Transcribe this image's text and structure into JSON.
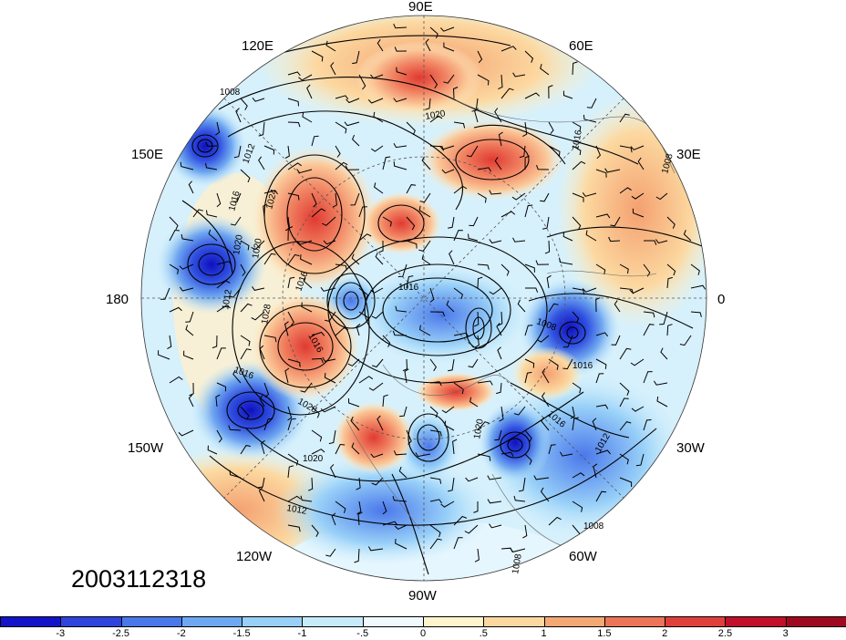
{
  "map": {
    "longitude_labels": [
      {
        "text": "90E",
        "name": "lon-label-90e"
      },
      {
        "text": "120E",
        "name": "lon-label-120e"
      },
      {
        "text": "60E",
        "name": "lon-label-60e"
      },
      {
        "text": "150E",
        "name": "lon-label-150e"
      },
      {
        "text": "30E",
        "name": "lon-label-30e"
      },
      {
        "text": "180",
        "name": "lon-label-180"
      },
      {
        "text": "0",
        "name": "lon-label-0"
      },
      {
        "text": "150W",
        "name": "lon-label-150w"
      },
      {
        "text": "30W",
        "name": "lon-label-30w"
      },
      {
        "text": "120W",
        "name": "lon-label-120w"
      },
      {
        "text": "60W",
        "name": "lon-label-60w"
      },
      {
        "text": "90W",
        "name": "lon-label-90w"
      }
    ],
    "contour_labels": [
      "1008",
      "1012",
      "1016",
      "1020",
      "1024",
      "1028",
      "1016",
      "1016",
      "1008",
      "1016",
      "1020",
      "1016",
      "1012",
      "1008",
      "1020",
      "1016",
      "1012",
      "1008",
      "1008",
      "1016",
      "1020",
      "1012",
      "1016",
      "1028",
      "1020"
    ],
    "anomaly_centers": [
      {
        "name": "low-center-north-pacific-150e",
        "sign": "negative"
      },
      {
        "name": "low-center-aleutian",
        "sign": "negative"
      },
      {
        "name": "low-center-gulf-of-alaska",
        "sign": "negative"
      },
      {
        "name": "low-center-north-atlantic",
        "sign": "negative"
      },
      {
        "name": "low-center-iceland",
        "sign": "negative"
      },
      {
        "name": "low-center-arctic",
        "sign": "negative"
      },
      {
        "name": "high-center-siberia",
        "sign": "positive"
      },
      {
        "name": "high-center-central-asia",
        "sign": "positive"
      },
      {
        "name": "high-center-bering",
        "sign": "positive"
      },
      {
        "name": "high-center-north-america",
        "sign": "positive"
      },
      {
        "name": "high-center-east-asia",
        "sign": "positive"
      }
    ]
  },
  "timestamp": "2003112318",
  "colorbar": {
    "colors": [
      "#1414c8",
      "#2e44dc",
      "#4a78ea",
      "#6ea8f2",
      "#98d0f8",
      "#c6ecfc",
      "#f0fafe",
      "#fff4cc",
      "#fcd8a0",
      "#f4a874",
      "#ec7458",
      "#e0403c",
      "#c0102a",
      "#a00a20"
    ],
    "tick_labels": [
      "-3",
      "-2.5",
      "-2",
      "-1.5",
      "-1",
      "-.5",
      "0",
      ".5",
      "1",
      "1.5",
      "2",
      "2.5",
      "3"
    ]
  }
}
